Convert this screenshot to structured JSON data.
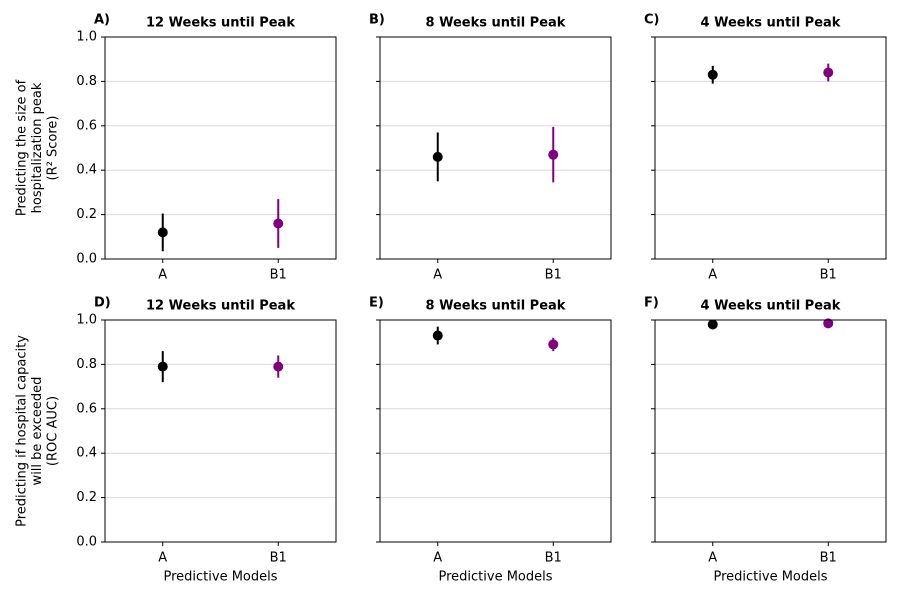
{
  "chart_data": [
    {
      "type": "errorbar",
      "panel_label": "A)",
      "title": "12 Weeks until Peak",
      "ylabel": [
        "Predicting the size of",
        "hospitalization peak",
        "(R² Score)"
      ],
      "categories": [
        "A",
        "B1"
      ],
      "values": [
        0.12,
        0.16
      ],
      "errors": [
        0.085,
        0.11
      ],
      "colors": [
        "#000000",
        "#800080"
      ],
      "ylim": [
        0,
        1
      ],
      "yticks": [
        {
          "value": 0,
          "label": "0.0"
        },
        {
          "value": 0.2,
          "label": "0.2"
        },
        {
          "value": 0.4,
          "label": "0.4"
        },
        {
          "value": 0.6,
          "label": "0.6"
        },
        {
          "value": 0.8,
          "label": "0.8"
        },
        {
          "value": 1,
          "label": "1.0"
        }
      ],
      "grid": true
    },
    {
      "type": "errorbar",
      "panel_label": "B)",
      "title": "8 Weeks until Peak",
      "categories": [
        "A",
        "B1"
      ],
      "values": [
        0.46,
        0.47
      ],
      "errors": [
        0.11,
        0.125
      ],
      "colors": [
        "#000000",
        "#800080"
      ],
      "ylim": [
        0,
        1
      ],
      "yticks": [
        0,
        0.2,
        0.4,
        0.6,
        0.8,
        1
      ],
      "grid": true
    },
    {
      "type": "errorbar",
      "panel_label": "C)",
      "title": "4 Weeks until Peak",
      "categories": [
        "A",
        "B1"
      ],
      "values": [
        0.83,
        0.84
      ],
      "errors": [
        0.04,
        0.04
      ],
      "colors": [
        "#000000",
        "#800080"
      ],
      "ylim": [
        0,
        1
      ],
      "yticks": [
        0,
        0.2,
        0.4,
        0.6,
        0.8,
        1
      ],
      "grid": true
    },
    {
      "type": "errorbar",
      "panel_label": "D)",
      "title": "12 Weeks until Peak",
      "ylabel": [
        "Predicting if hospital capacity",
        "will be exceeded",
        "(ROC AUC)"
      ],
      "xlabel": "Predictive Models",
      "categories": [
        "A",
        "B1"
      ],
      "values": [
        0.79,
        0.79
      ],
      "errors": [
        0.07,
        0.05
      ],
      "colors": [
        "#000000",
        "#800080"
      ],
      "ylim": [
        0,
        1
      ],
      "yticks": [
        {
          "value": 0,
          "label": "0.0"
        },
        {
          "value": 0.2,
          "label": "0.2"
        },
        {
          "value": 0.4,
          "label": "0.4"
        },
        {
          "value": 0.6,
          "label": "0.6"
        },
        {
          "value": 0.8,
          "label": "0.8"
        },
        {
          "value": 1,
          "label": "1.0"
        }
      ],
      "grid": true
    },
    {
      "type": "errorbar",
      "panel_label": "E)",
      "title": "8 Weeks until Peak",
      "xlabel": "Predictive Models",
      "categories": [
        "A",
        "B1"
      ],
      "values": [
        0.93,
        0.89
      ],
      "errors": [
        0.04,
        0.03
      ],
      "colors": [
        "#000000",
        "#800080"
      ],
      "ylim": [
        0,
        1
      ],
      "yticks": [
        0,
        0.2,
        0.4,
        0.6,
        0.8,
        1
      ],
      "grid": true
    },
    {
      "type": "errorbar",
      "panel_label": "F)",
      "title": "4 Weeks until Peak",
      "xlabel": "Predictive Models",
      "categories": [
        "A",
        "B1"
      ],
      "values": [
        0.98,
        0.985
      ],
      "errors": [
        0.01,
        0.01
      ],
      "colors": [
        "#000000",
        "#800080"
      ],
      "ylim": [
        0,
        1
      ],
      "yticks": [
        0,
        0.2,
        0.4,
        0.6,
        0.8,
        1
      ],
      "grid": true
    }
  ]
}
